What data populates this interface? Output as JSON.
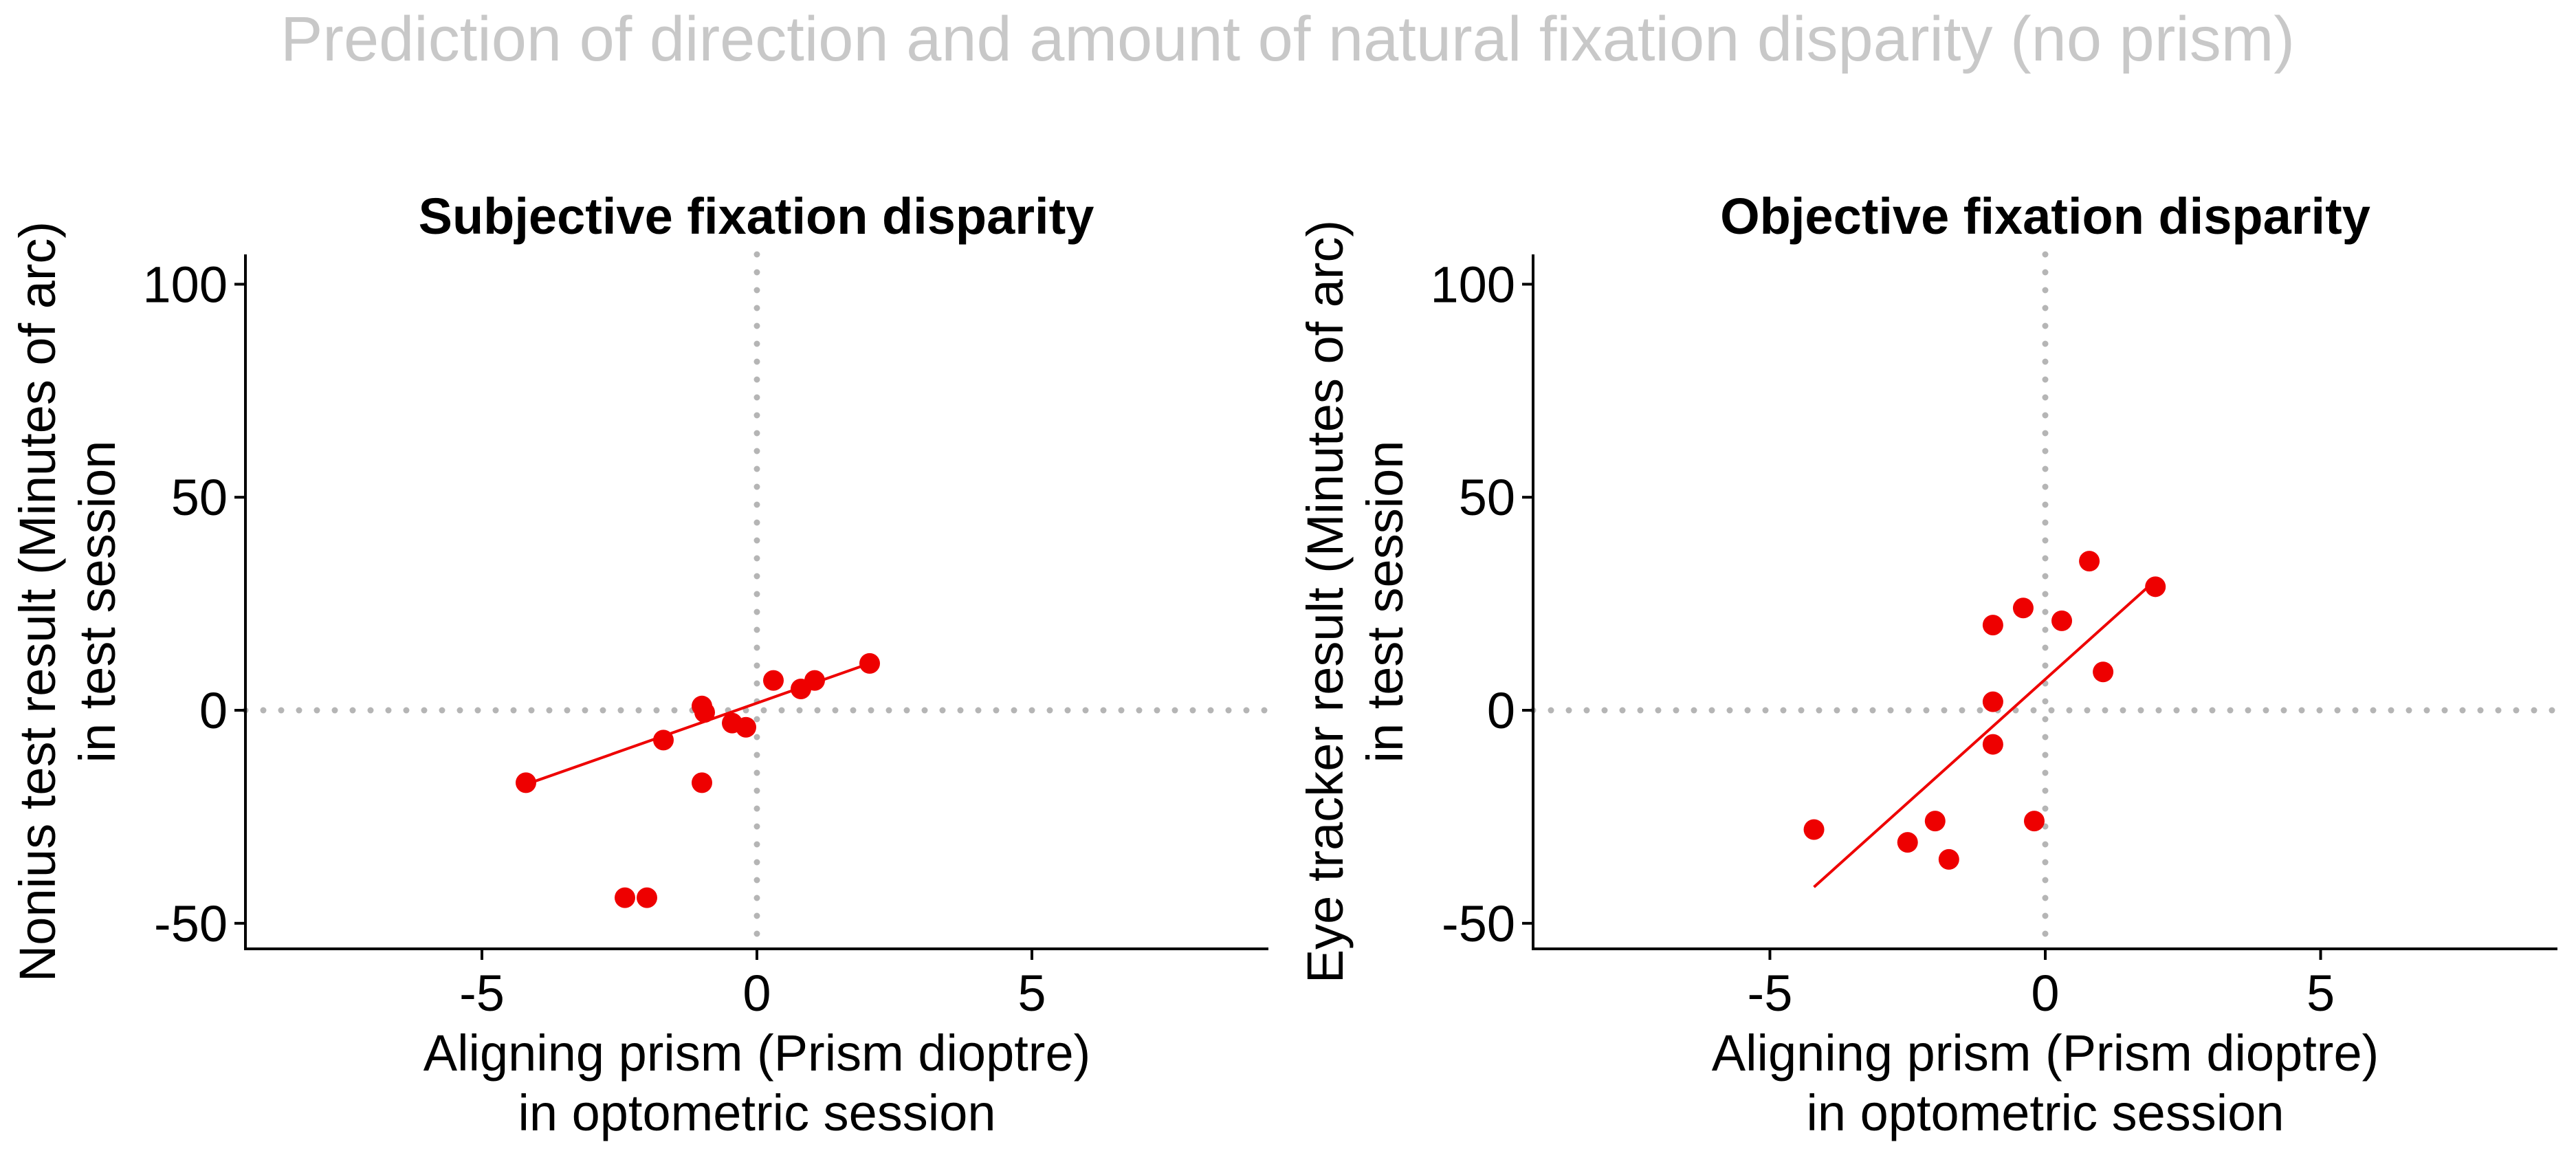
{
  "figure_title": "Prediction of direction and amount of natural fixation disparity (no prism)",
  "colors": {
    "points": "#ee0000",
    "reference_lines": "#b5b5b5",
    "title": "#c8c8c8"
  },
  "chart_data": [
    {
      "type": "scatter",
      "title": "Subjective fixation disparity",
      "xlabel": [
        "Aligning prism (Prism dioptre)",
        "in optometric session"
      ],
      "ylabel": [
        "Nonius test result (Minutes of arc)",
        "in test session"
      ],
      "xlim": [
        -9.3,
        9.3
      ],
      "ylim": [
        -56,
        107
      ],
      "xticks": [
        -5,
        0,
        5
      ],
      "yticks": [
        -50,
        0,
        50,
        100
      ],
      "reference_lines": {
        "x": 0,
        "y": 0,
        "style": "dotted"
      },
      "points": [
        {
          "x": -4.2,
          "y": -17
        },
        {
          "x": -2.4,
          "y": -44
        },
        {
          "x": -2.0,
          "y": -44
        },
        {
          "x": -1.7,
          "y": -7
        },
        {
          "x": -1.0,
          "y": 1
        },
        {
          "x": -0.95,
          "y": -0.5
        },
        {
          "x": -1.0,
          "y": -17
        },
        {
          "x": -0.45,
          "y": -3
        },
        {
          "x": -0.2,
          "y": -4
        },
        {
          "x": 0.3,
          "y": 7
        },
        {
          "x": 0.8,
          "y": 5
        },
        {
          "x": 1.05,
          "y": 7
        },
        {
          "x": 2.05,
          "y": 11
        }
      ],
      "fit_line": {
        "x": [
          -4.2,
          2.05
        ],
        "y": [
          -17.4,
          11
        ]
      }
    },
    {
      "type": "scatter",
      "title": "Objective fixation disparity",
      "xlabel": [
        "Aligning prism (Prism dioptre)",
        "in optometric session"
      ],
      "ylabel": [
        "Eye tracker result (Minutes of arc)",
        "in test session"
      ],
      "xlim": [
        -9.3,
        9.3
      ],
      "ylim": [
        -56,
        107
      ],
      "xticks": [
        -5,
        0,
        5
      ],
      "yticks": [
        -50,
        0,
        50,
        100
      ],
      "reference_lines": {
        "x": 0,
        "y": 0,
        "style": "dotted"
      },
      "points": [
        {
          "x": -4.2,
          "y": -28
        },
        {
          "x": -2.5,
          "y": -31
        },
        {
          "x": -2.0,
          "y": -26
        },
        {
          "x": -1.75,
          "y": -35
        },
        {
          "x": -0.95,
          "y": 20
        },
        {
          "x": -0.95,
          "y": 2
        },
        {
          "x": -0.95,
          "y": -8
        },
        {
          "x": -0.4,
          "y": 24
        },
        {
          "x": -0.2,
          "y": -26
        },
        {
          "x": 0.3,
          "y": 21
        },
        {
          "x": 0.8,
          "y": 35
        },
        {
          "x": 1.05,
          "y": 9
        },
        {
          "x": 2.0,
          "y": 29
        }
      ],
      "fit_line": {
        "x": [
          -4.2,
          2.0
        ],
        "y": [
          -41.5,
          30.5
        ]
      }
    }
  ]
}
